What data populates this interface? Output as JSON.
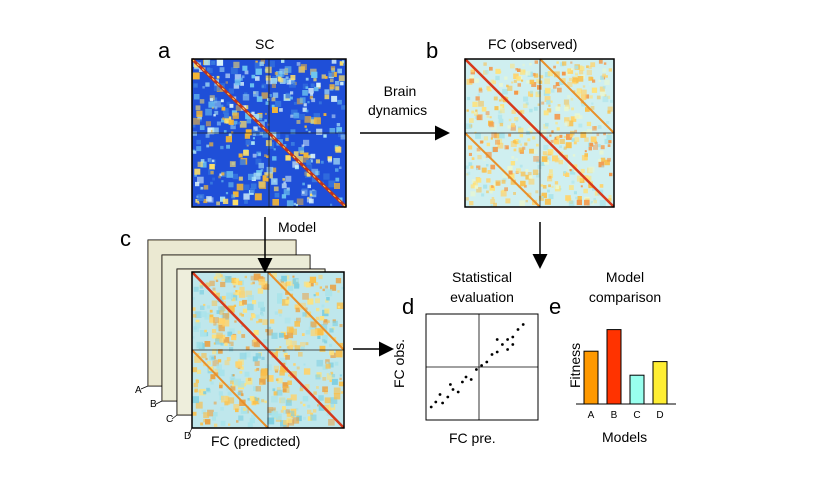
{
  "panels": {
    "a": {
      "letter": "a",
      "title": "SC"
    },
    "b": {
      "letter": "b",
      "title": "FC (observed)"
    },
    "c": {
      "letter": "c",
      "title": "FC (predicted)",
      "model_label": "Model",
      "stack_labels": [
        "A",
        "B",
        "C",
        "D"
      ]
    },
    "d": {
      "letter": "d",
      "title_line1": "Statistical",
      "title_line2": "evaluation",
      "xlabel": "FC pre.",
      "ylabel": "FC obs."
    },
    "e": {
      "letter": "e",
      "title_line1": "Model",
      "title_line2": "comparison",
      "xlabel": "Models",
      "ylabel": "Fitness"
    }
  },
  "arrow_label": {
    "line1": "Brain",
    "line2": "dynamics"
  },
  "chart_data": {
    "type": "bar",
    "title": "Model comparison",
    "xlabel": "Models",
    "ylabel": "Fitness",
    "categories": [
      "A",
      "B",
      "C",
      "D"
    ],
    "values": [
      0.66,
      0.93,
      0.36,
      0.53
    ],
    "colors": [
      "#ff9900",
      "#ff3300",
      "#99ffee",
      "#ffee33"
    ]
  },
  "scatter_data": {
    "type": "scatter",
    "xlabel": "FC pre.",
    "ylabel": "FC obs.",
    "points": [
      [
        -0.92,
        -0.8
      ],
      [
        -0.83,
        -0.7
      ],
      [
        -0.7,
        -0.72
      ],
      [
        -0.6,
        -0.6
      ],
      [
        -0.5,
        -0.45
      ],
      [
        -0.4,
        -0.5
      ],
      [
        -0.32,
        -0.3
      ],
      [
        -0.25,
        -0.2
      ],
      [
        -0.15,
        -0.25
      ],
      [
        -0.05,
        -0.05
      ],
      [
        0.05,
        0.03
      ],
      [
        0.15,
        0.1
      ],
      [
        0.25,
        0.25
      ],
      [
        0.35,
        0.3
      ],
      [
        0.45,
        0.45
      ],
      [
        0.55,
        0.55
      ],
      [
        0.65,
        0.6
      ],
      [
        0.75,
        0.75
      ],
      [
        0.85,
        0.85
      ],
      [
        0.55,
        0.35
      ],
      [
        0.65,
        0.45
      ],
      [
        -0.75,
        -0.55
      ],
      [
        -0.55,
        -0.35
      ],
      [
        0.35,
        0.55
      ]
    ]
  }
}
